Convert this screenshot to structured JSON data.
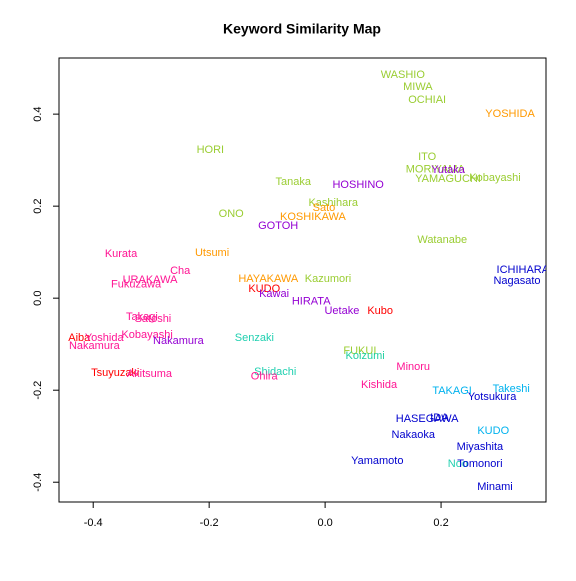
{
  "chart_data": {
    "type": "scatter",
    "title": "Keyword Similarity Map",
    "labels": [
      "WASHIO",
      "MIWA",
      "OCHIAI",
      "YOSHIDA",
      "HORI",
      "ITO",
      "MORIYAMA",
      "Yutaka",
      "YAMAGUCHI",
      "Kobayashi",
      "Tanaka",
      "HOSHINO",
      "Kashihara",
      "Sato",
      "ONO",
      "KOSHIKAWA",
      "GOTOH",
      "Watanabe",
      "Kurata",
      "Utsumi",
      "Cha",
      "ICHIHARA",
      "URAKAWA",
      "Fukuzawa",
      "HAYAKAWA",
      "Kazumori",
      "Nagasato",
      "KUDO",
      "Kawai",
      "HIRATA",
      "Uetake",
      "Kubo",
      "Takagi",
      "Satoshi",
      "Kobayashi",
      "Aiba",
      "Yoshida",
      "Nakamura",
      "Nakamura",
      "Senzaki",
      "FUKUI",
      "Koizumi",
      "Minoru",
      "Tsuyuzaki",
      "Akitsuma",
      "Shidachi",
      "Ohira",
      "Kishida",
      "TAKAGI",
      "Takeshi",
      "Yotsukura",
      "HASEGAWA",
      "IDA",
      "Nakaoka",
      "KUDO",
      "Miyashita",
      "Yamamoto",
      "Noo",
      "Tomonori",
      "Minami"
    ],
    "x": [
      0.134,
      0.16,
      0.176,
      0.319,
      -0.198,
      0.176,
      0.19,
      0.212,
      0.212,
      0.293,
      -0.055,
      0.057,
      0.014,
      -0.002,
      -0.162,
      -0.021,
      -0.081,
      0.202,
      -0.352,
      -0.195,
      -0.25,
      0.341,
      -0.302,
      -0.326,
      -0.098,
      0.005,
      0.331,
      -0.105,
      -0.088,
      -0.024,
      0.029,
      0.095,
      -0.316,
      -0.297,
      -0.307,
      -0.424,
      -0.381,
      -0.398,
      -0.253,
      -0.122,
      0.06,
      0.069,
      0.152,
      -0.362,
      -0.303,
      -0.086,
      -0.105,
      0.093,
      0.219,
      0.321,
      0.288,
      0.176,
      0.197,
      0.152,
      0.29,
      0.267,
      0.09,
      0.229,
      0.267,
      0.293
    ],
    "y": [
      0.485,
      0.459,
      0.43,
      0.4,
      0.322,
      0.307,
      0.28,
      0.278,
      0.259,
      0.261,
      0.252,
      0.246,
      0.207,
      0.196,
      0.183,
      0.176,
      0.157,
      0.126,
      0.096,
      0.098,
      0.059,
      0.061,
      0.039,
      0.03,
      0.041,
      0.041,
      0.037,
      0.02,
      0.009,
      -0.007,
      -0.028,
      -0.028,
      -0.041,
      -0.046,
      -0.08,
      -0.087,
      -0.087,
      -0.104,
      -0.093,
      -0.087,
      -0.115,
      -0.126,
      -0.15,
      -0.163,
      -0.165,
      -0.161,
      -0.17,
      -0.189,
      -0.202,
      -0.198,
      -0.215,
      -0.263,
      -0.261,
      -0.298,
      -0.289,
      -0.324,
      -0.354,
      -0.361,
      -0.361,
      -0.411
    ],
    "colors": [
      "#9acd32",
      "#9acd32",
      "#9acd32",
      "#ff9900",
      "#9acd32",
      "#9acd32",
      "#9acd32",
      "#9400d3",
      "#9acd32",
      "#9acd32",
      "#9acd32",
      "#9400d3",
      "#9acd32",
      "#ff9900",
      "#9acd32",
      "#ff9900",
      "#9400d3",
      "#9acd32",
      "#ff1493",
      "#ff9900",
      "#ff1493",
      "#0000cd",
      "#ff1493",
      "#ff1493",
      "#ff9900",
      "#9acd32",
      "#0000cd",
      "#ff0000",
      "#9400d3",
      "#9400d3",
      "#9400d3",
      "#ff0000",
      "#ff1493",
      "#ff1493",
      "#ff1493",
      "#ff0000",
      "#ff1493",
      "#ff1493",
      "#9400d3",
      "#20d0b0",
      "#9acd32",
      "#20d0a0",
      "#ff1493",
      "#ff0000",
      "#ff1493",
      "#20d0b0",
      "#ff1493",
      "#ff1493",
      "#00b2ee",
      "#00b2ee",
      "#0000cd",
      "#0000cd",
      "#0000cd",
      "#0000cd",
      "#00b2ee",
      "#0000cd",
      "#0000cd",
      "#20d0b0",
      "#0000cd",
      "#0000cd"
    ],
    "xlim": [
      -0.459,
      0.381
    ],
    "ylim": [
      -0.443,
      0.522
    ],
    "xticks": [
      -0.4,
      -0.2,
      {
        "value": 0,
        "label": "0.0"
      },
      0.2
    ],
    "yticks": [
      -0.4,
      -0.2,
      {
        "value": 0,
        "label": "0.0"
      },
      0.2,
      0.4
    ]
  }
}
